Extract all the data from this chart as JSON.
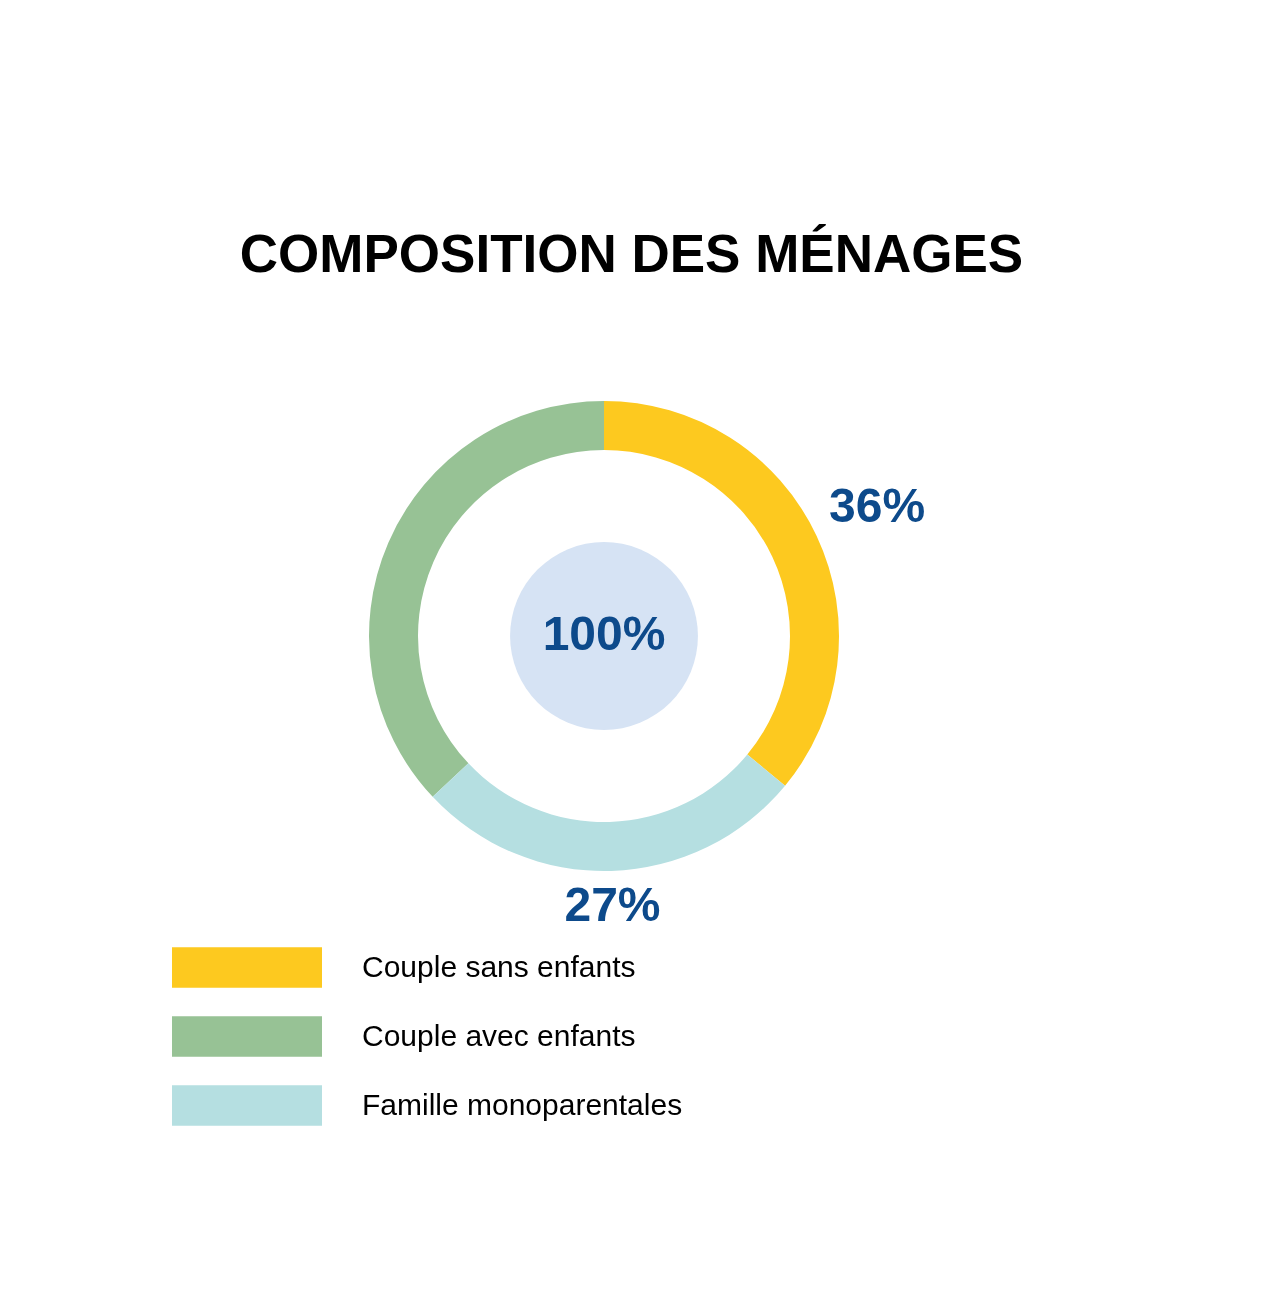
{
  "chart_data": {
    "type": "donut",
    "title": "COMPOSITION DES MÉNAGES",
    "categories": [
      "Couple sans enfants",
      "Couple avec enfants",
      "Famille monoparentales"
    ],
    "values": [
      36,
      37,
      27
    ],
    "colors": [
      "#fdc91f",
      "#97c295",
      "#b5dfe1"
    ],
    "value_labels": [
      "36%",
      null,
      "27%"
    ],
    "annotations": [
      "100%"
    ],
    "legend": "bottom left"
  }
}
